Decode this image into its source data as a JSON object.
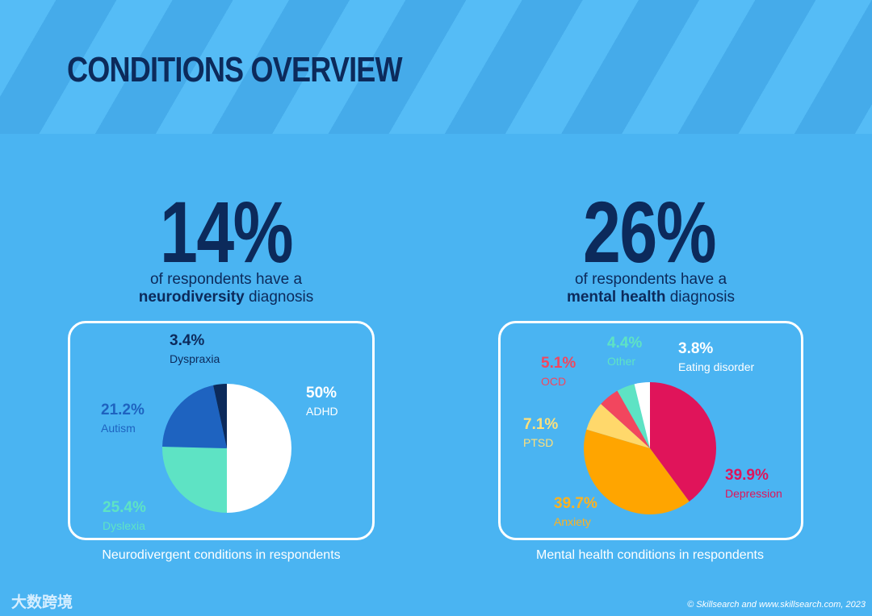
{
  "page": {
    "title": "CONDITIONS OVERVIEW",
    "footer_logo": "大数跨境",
    "copyright": "© Skillsearch and www.skillsearch.com, 2023"
  },
  "left": {
    "stat": "14%",
    "desc_line1": "of respondents have a",
    "desc_bold": "neurodiversity",
    "desc_rest": " diagnosis",
    "caption": "Neurodivergent conditions in respondents"
  },
  "right": {
    "stat": "26%",
    "desc_line1": "of respondents have a",
    "desc_bold": "mental health",
    "desc_rest": " diagnosis",
    "caption": "Mental health conditions in respondents"
  },
  "chart_data": [
    {
      "type": "pie",
      "slices": [
        {
          "label": "ADHD",
          "value": 50,
          "display": "50%",
          "color": "#FFFFFF",
          "label_color": "#FFFFFF"
        },
        {
          "label": "Dyslexia",
          "value": 25.4,
          "display": "25.4%",
          "color": "#5EE3C4",
          "label_color": "#5EE3C4"
        },
        {
          "label": "Autism",
          "value": 21.2,
          "display": "21.2%",
          "color": "#1E63C0",
          "label_color": "#1E63C0"
        },
        {
          "label": "Dyspraxia",
          "value": 3.4,
          "display": "3.4%",
          "color": "#0C2A5B",
          "label_color": "#0C2A5B"
        }
      ]
    },
    {
      "type": "pie",
      "slices": [
        {
          "label": "Depression",
          "value": 39.9,
          "display": "39.9%",
          "color": "#E0145A",
          "label_color": "#E0145A"
        },
        {
          "label": "Anxiety",
          "value": 39.7,
          "display": "39.7%",
          "color": "#FFA500",
          "label_color": "#FFB21E"
        },
        {
          "label": "PTSD",
          "value": 7.1,
          "display": "7.1%",
          "color": "#FFD86B",
          "label_color": "#FFE07A"
        },
        {
          "label": "OCD",
          "value": 5.1,
          "display": "5.1%",
          "color": "#F2465E",
          "label_color": "#F2465E"
        },
        {
          "label": "Other",
          "value": 4.4,
          "display": "4.4%",
          "color": "#5EE3C4",
          "label_color": "#5EE3C4"
        },
        {
          "label": "Eating disorder",
          "value": 3.8,
          "display": "3.8%",
          "color": "#FFFFFF",
          "label_color": "#FFFFFF"
        }
      ]
    }
  ]
}
